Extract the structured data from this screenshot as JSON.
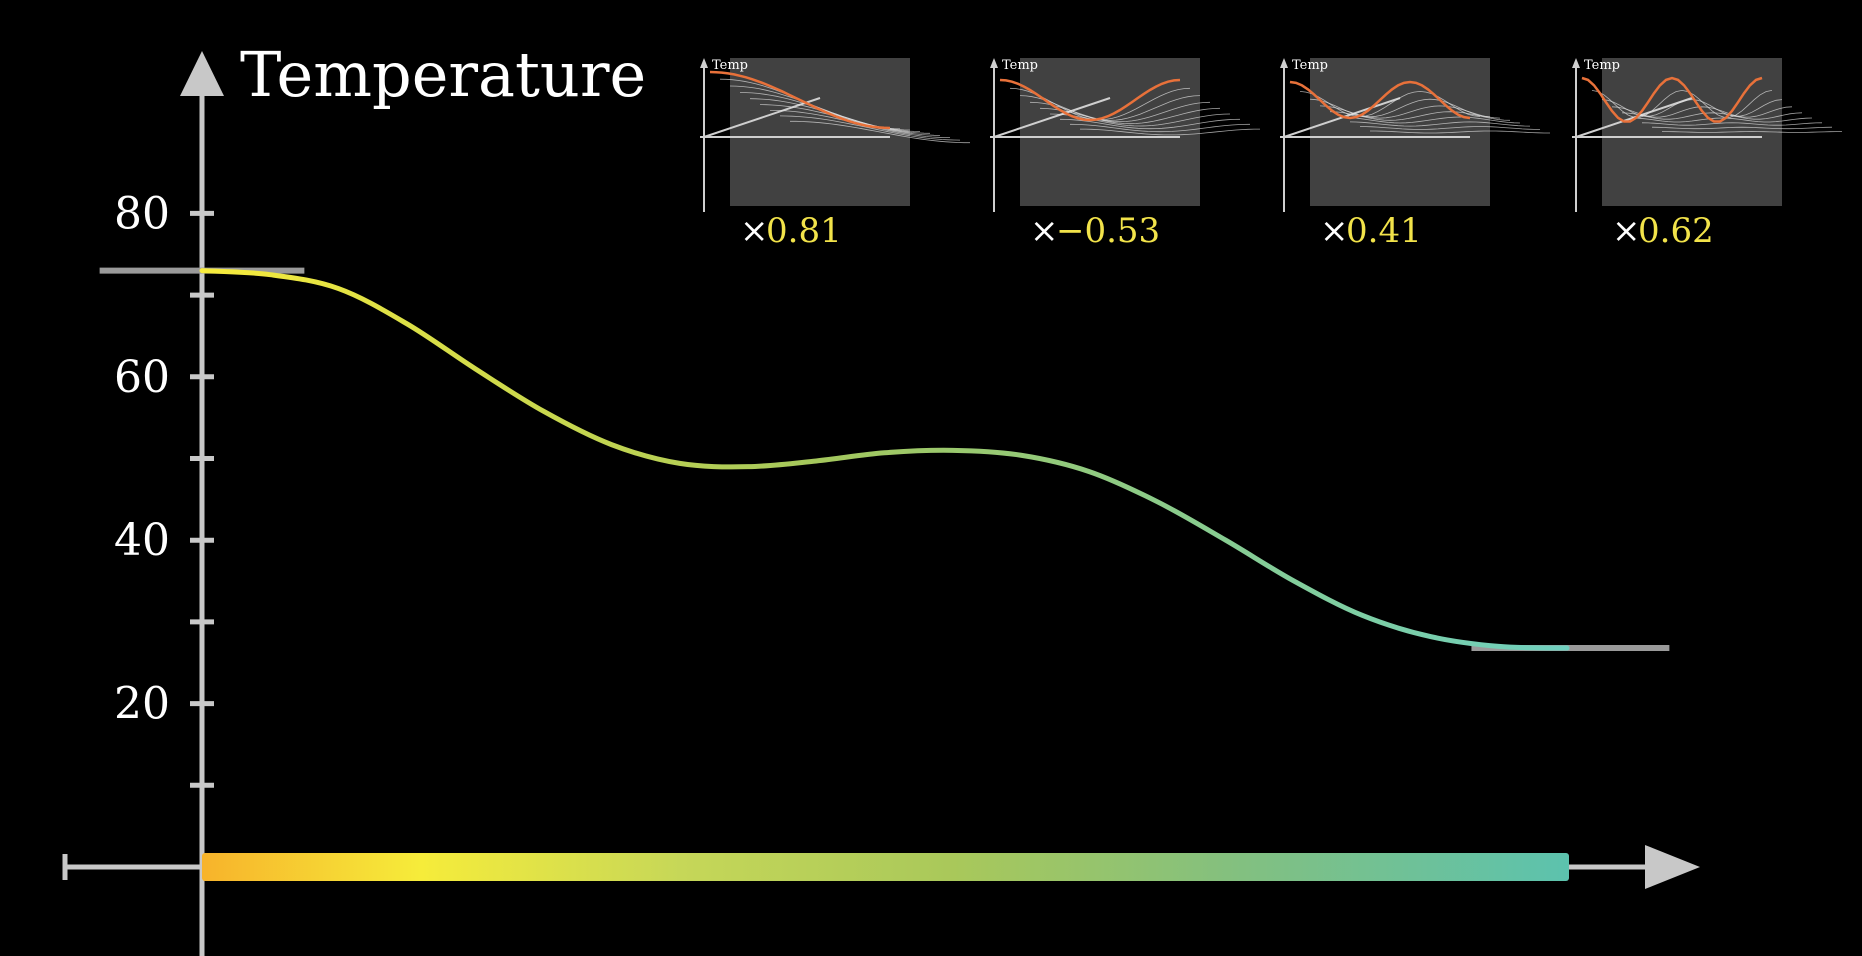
{
  "chart_data": {
    "type": "line",
    "ylabel": "Temperature",
    "xlabel": "",
    "ylim": [
      -10,
      90
    ],
    "xlim": [
      -1,
      10.5
    ],
    "yticks": [
      10,
      20,
      30,
      40,
      50,
      60,
      70,
      80
    ],
    "ytick_labels": [
      "80",
      "60",
      "40",
      "20"
    ],
    "ytick_label_values": [
      80,
      60,
      40,
      20
    ],
    "grid": false,
    "curve": {
      "x": [
        0,
        0.5,
        1,
        1.5,
        2,
        2.5,
        3,
        3.5,
        4,
        4.5,
        5,
        5.5,
        6,
        6.5,
        7,
        7.5,
        8,
        8.5,
        9,
        9.5,
        10
      ],
      "y": [
        73,
        72.5,
        70.8,
        66.5,
        61,
        55.8,
        51.7,
        49.4,
        49,
        49.7,
        50.7,
        51,
        50.4,
        48.4,
        44.7,
        40,
        35,
        30.8,
        28.2,
        27,
        26.8
      ]
    },
    "boundary_markers": [
      {
        "x_from": -0.75,
        "x_to": 0.75,
        "y": 73
      },
      {
        "x_from": 9.3,
        "x_to": 10.75,
        "y": 26.8
      }
    ],
    "rod_gradient": [
      "#f7b32b",
      "#f6ec3a",
      "#c6d758",
      "#a9c85a",
      "#84c07e",
      "#5cc2ae"
    ],
    "colors": {
      "axis": "#c8c8c8",
      "curve_start": "#f8ec3c",
      "curve_mid": "#a4c75c",
      "curve_end": "#6fd0bf",
      "marker": "#9a9a9a",
      "coefficient": "#f2e34a",
      "mini_highlight": "#e8713a"
    }
  },
  "mini_plots": [
    {
      "axis_label": "Temp",
      "multiplier_sign": "×",
      "coefficient": "0.81"
    },
    {
      "axis_label": "Temp",
      "multiplier_sign": "×",
      "coefficient": "−0.53"
    },
    {
      "axis_label": "Temp",
      "multiplier_sign": "×",
      "coefficient": "0.41"
    },
    {
      "axis_label": "Temp",
      "multiplier_sign": "×",
      "coefficient": "0.62"
    }
  ]
}
